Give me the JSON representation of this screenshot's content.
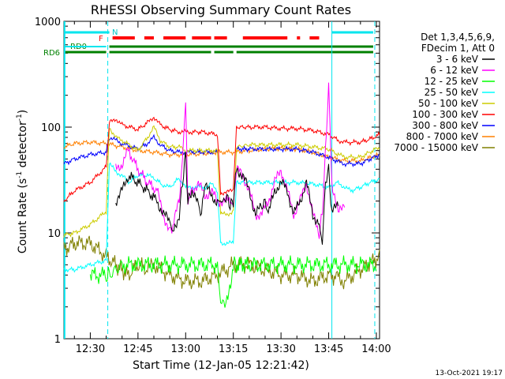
{
  "chart_data": {
    "type": "line",
    "title": "RHESSI Observing Summary Count Rates",
    "xlabel": "Start Time (12-Jan-05 12:21:42)",
    "ylabel_main": "Count Rate (s",
    "ylabel_sup1": "-1",
    "ylabel_mid": " detector",
    "ylabel_sup2": "-1",
    "ylabel_end": ")",
    "yscale": "log",
    "ylim": [
      1,
      1000
    ],
    "xlim_minutes": [
      21.7,
      121
    ],
    "x_ticks": [
      {
        "m": 30,
        "label": "12:30"
      },
      {
        "m": 45,
        "label": "12:45"
      },
      {
        "m": 60,
        "label": "13:00"
      },
      {
        "m": 75,
        "label": "13:15"
      },
      {
        "m": 90,
        "label": "13:30"
      },
      {
        "m": 105,
        "label": "13:45"
      },
      {
        "m": 120,
        "label": "14:00"
      }
    ],
    "y_ticks": [
      {
        "v": 1,
        "label": "1"
      },
      {
        "v": 10,
        "label": "10"
      },
      {
        "v": 100,
        "label": "100"
      },
      {
        "v": 1000,
        "label": "1000"
      }
    ],
    "legend_header": [
      "Det 1,3,4,5,6,9,",
      "FDecim 1, Att 0"
    ],
    "legend_position": "outside-right",
    "series": [
      {
        "name": "3 - 6 keV",
        "color": "#000000",
        "x": [
          21.7,
          30,
          35,
          36,
          38,
          40,
          42,
          45,
          48,
          51,
          53,
          55,
          56,
          58,
          59,
          60,
          60.7,
          62,
          64,
          65,
          66,
          68,
          70,
          71,
          72,
          73,
          74,
          75,
          76,
          78,
          80,
          82,
          84,
          85,
          86,
          88,
          90,
          92,
          94,
          96,
          98,
          100,
          102,
          103,
          104,
          105,
          106,
          108,
          110,
          112,
          115,
          118,
          121
        ],
        "y": [
          null,
          null,
          null,
          null,
          20,
          25,
          35,
          30,
          25,
          20,
          15,
          13,
          10,
          15,
          30,
          55,
          20,
          25,
          18,
          15,
          30,
          22,
          20,
          20,
          20,
          22,
          18,
          20,
          40,
          35,
          25,
          15,
          18,
          20,
          15,
          25,
          30,
          25,
          15,
          20,
          30,
          15,
          12,
          8,
          30,
          40,
          15,
          20,
          null,
          null,
          null,
          null,
          null
        ]
      },
      {
        "name": "6 - 12 keV",
        "color": "#ff00ff",
        "x": [
          21.7,
          36,
          38,
          40,
          42,
          45,
          48,
          51,
          53,
          55,
          56,
          58,
          59,
          60,
          60.7,
          62,
          64,
          66,
          68,
          70,
          72,
          74,
          75,
          76,
          78,
          80,
          82,
          84,
          86,
          88,
          90,
          92,
          94,
          96,
          98,
          100,
          102,
          103,
          104,
          105,
          106,
          108,
          110,
          115,
          121
        ],
        "y": [
          null,
          null,
          40,
          45,
          60,
          40,
          30,
          25,
          15,
          10,
          12,
          20,
          50,
          180,
          20,
          25,
          30,
          22,
          25,
          20,
          20,
          20,
          18,
          40,
          35,
          25,
          15,
          15,
          20,
          30,
          40,
          25,
          15,
          20,
          30,
          15,
          10,
          15,
          60,
          250,
          30,
          15,
          20,
          null,
          null
        ]
      },
      {
        "name": "12 - 25 keV",
        "color": "#00ff00",
        "x": [
          30,
          35,
          36,
          40,
          45,
          50,
          55,
          60,
          65,
          70,
          71,
          72,
          73,
          75,
          76,
          80,
          85,
          90,
          95,
          100,
          105,
          110,
          115,
          120
        ],
        "y": [
          4,
          4,
          4,
          5,
          5,
          5,
          5,
          5,
          5,
          5,
          2.2,
          2.2,
          2.2,
          5,
          5,
          5,
          5,
          5,
          5,
          5,
          5,
          5,
          5,
          5
        ]
      },
      {
        "name": "25 - 50 keV",
        "color": "#00ffff",
        "x": [
          21.7,
          25,
          30,
          35,
          36,
          38,
          40,
          42,
          45,
          48,
          50,
          53,
          55,
          58,
          60,
          62,
          64,
          66,
          68,
          70,
          71,
          73,
          75,
          76,
          80,
          85,
          90,
          95,
          100,
          105,
          108,
          110,
          112,
          115,
          118,
          121
        ],
        "y": [
          4.5,
          4.5,
          5,
          5.5,
          45,
          38,
          35,
          30,
          35,
          35,
          33,
          28,
          27,
          33,
          27,
          27,
          27,
          27,
          29,
          25,
          8,
          8,
          8,
          30,
          30,
          30,
          30,
          30,
          29,
          27,
          30,
          27,
          25,
          27,
          30,
          32
        ]
      },
      {
        "name": "50 - 100 keV",
        "color": "#cccc00",
        "x": [
          21.7,
          25,
          30,
          35,
          36,
          38,
          40,
          45,
          48,
          50,
          52,
          55,
          58,
          60,
          62,
          65,
          70,
          71,
          73,
          75,
          76,
          80,
          85,
          90,
          95,
          100,
          105,
          108,
          110,
          115,
          118,
          121
        ],
        "y": [
          9.5,
          10,
          12,
          16,
          100,
          80,
          75,
          60,
          80,
          100,
          75,
          65,
          65,
          60,
          60,
          60,
          60,
          15,
          15,
          16,
          65,
          68,
          68,
          68,
          68,
          65,
          62,
          55,
          52,
          52,
          58,
          65
        ]
      },
      {
        "name": "100 - 300 keV",
        "color": "#ff0000",
        "x": [
          21.7,
          25,
          30,
          35,
          36,
          38,
          40,
          45,
          48,
          50,
          52,
          55,
          58,
          60,
          62,
          65,
          70,
          71,
          73,
          75,
          76,
          80,
          85,
          90,
          95,
          100,
          105,
          108,
          110,
          115,
          118,
          121
        ],
        "y": [
          20,
          25,
          30,
          42,
          110,
          120,
          105,
          95,
          110,
          125,
          105,
          95,
          90,
          90,
          90,
          90,
          85,
          24,
          24,
          26,
          100,
          100,
          100,
          97,
          97,
          93,
          85,
          75,
          72,
          72,
          77,
          85
        ]
      },
      {
        "name": "300 - 800 keV",
        "color": "#0000ff",
        "x": [
          21.7,
          25,
          30,
          35,
          36,
          38,
          40,
          45,
          48,
          50,
          52,
          55,
          58,
          60,
          62,
          65,
          70,
          71,
          73,
          75,
          76,
          80,
          85,
          90,
          95,
          100,
          105,
          108,
          110,
          115,
          118,
          121
        ],
        "y": [
          45,
          50,
          55,
          58,
          80,
          75,
          70,
          62,
          70,
          80,
          68,
          60,
          58,
          58,
          58,
          58,
          58,
          null,
          null,
          null,
          62,
          62,
          62,
          62,
          62,
          58,
          52,
          47,
          45,
          45,
          50,
          55
        ]
      },
      {
        "name": "800 - 7000 keV",
        "color": "#ff8000",
        "x": [
          21.7,
          25,
          30,
          35,
          40,
          45,
          50,
          55,
          60,
          65,
          70,
          75,
          80,
          85,
          90,
          95,
          100,
          105,
          110,
          115,
          121
        ],
        "y": [
          65,
          70,
          72,
          70,
          65,
          60,
          58,
          55,
          55,
          56,
          58,
          58,
          60,
          62,
          63,
          62,
          58,
          52,
          48,
          48,
          55
        ]
      },
      {
        "name": "7000 - 15000 keV",
        "color": "#808000",
        "x": [
          21.7,
          25,
          30,
          35,
          38,
          42,
          45,
          48,
          50,
          55,
          60,
          65,
          70,
          75,
          80,
          85,
          90,
          95,
          100,
          105,
          108,
          110,
          115,
          121
        ],
        "y": [
          7,
          8,
          8,
          6,
          5,
          4,
          5,
          4.5,
          5,
          4,
          3.5,
          3.5,
          4,
          5,
          5,
          4.5,
          4,
          4,
          3.5,
          4,
          3.8,
          3.5,
          4.5,
          6
        ]
      }
    ],
    "flag_labels": {
      "rd0": "RD0",
      "rd6": "RD6",
      "f": "F",
      "n": "N"
    },
    "timestamp": "13-Oct-2021 19:17"
  }
}
